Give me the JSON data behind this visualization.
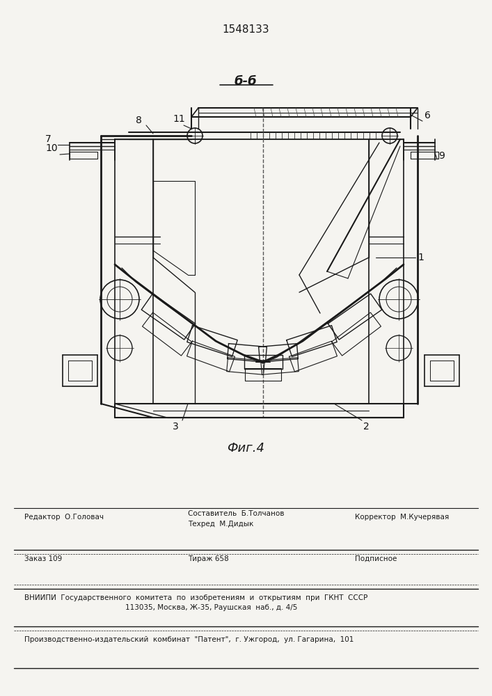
{
  "patent_number": "1548133",
  "figure_label": "Фиг.4",
  "section_label": "б-б",
  "bg_color": "#f5f4f0",
  "line_color": "#1a1a1a",
  "editor_line": "Редактор  О.Головач",
  "composer_line": "Составитель  Б.Толчанов",
  "techred_line": "Техред  М.Дидык",
  "corrector_line": "Корректор  М.Кучерявая",
  "order_line": "Заказ 109",
  "tirazh_line": "Тираж 658",
  "podpisnoe_line": "Подписное",
  "vniip_line": "ВНИИПИ  Государственного  комитета  по  изобретениям  и  открытиям  при  ГКНТ  СССР",
  "address_line": "113035, Москва, Ж-35, Раушская  наб., д. 4/5",
  "producer_line": "Производственно-издательский  комбинат  \"Патент\",  г. Ужгород,  ул. Гагарина,  101"
}
